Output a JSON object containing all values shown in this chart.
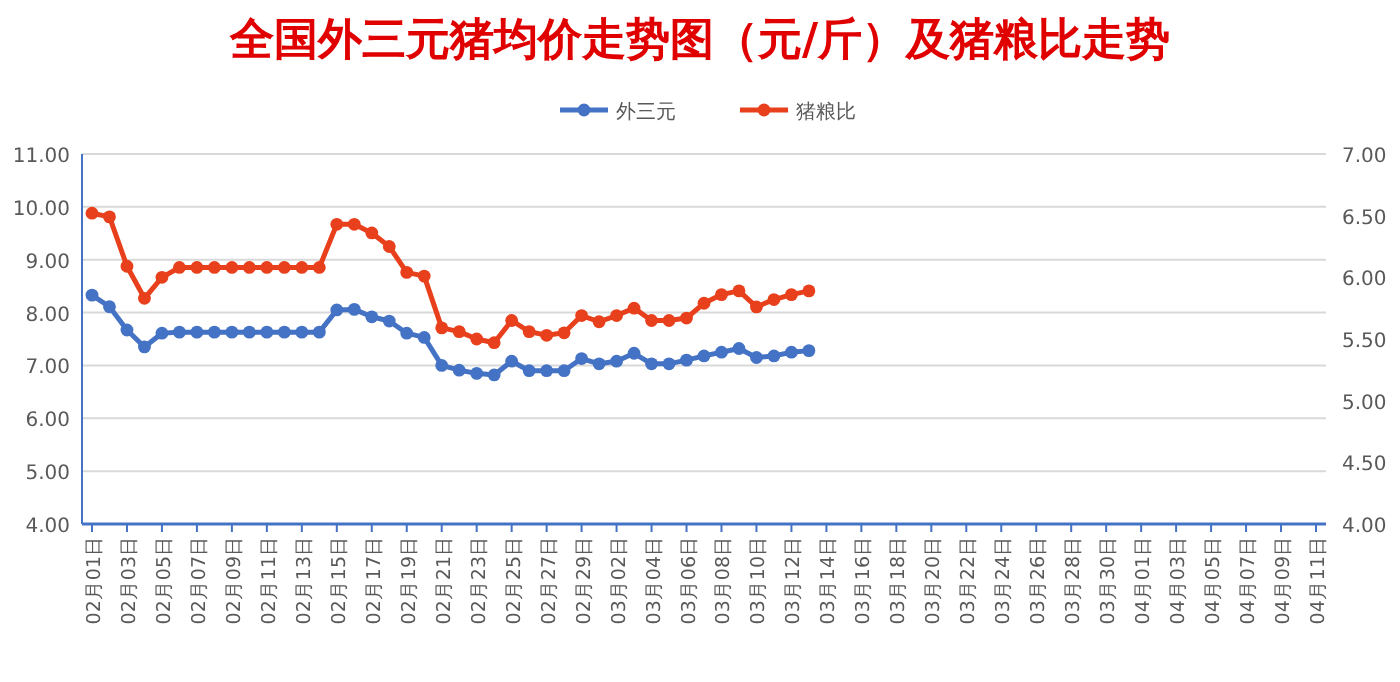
{
  "chart_data": {
    "type": "line",
    "title": "全国外三元猪均价走势图（元/斤）及猪粮比走势",
    "categories": [
      "02月01日",
      null,
      "02月03日",
      null,
      "02月05日",
      null,
      "02月07日",
      null,
      "02月09日",
      null,
      "02月11日",
      null,
      "02月13日",
      null,
      "02月15日",
      null,
      "02月17日",
      null,
      "02月19日",
      null,
      "02月21日",
      null,
      "02月23日",
      null,
      "02月25日",
      null,
      "02月27日",
      null,
      "02月29日",
      null,
      "03月02日",
      null,
      "03月04日",
      null,
      "03月06日",
      null,
      "03月08日",
      null,
      "03月10日",
      null,
      "03月12日",
      null,
      "03月14日",
      null,
      "03月16日",
      null,
      "03月18日",
      null,
      "03月20日",
      null,
      "03月22日",
      null,
      "03月24日",
      null,
      "03月26日",
      null,
      "03月28日",
      null,
      "03月30日",
      null,
      "04月01日",
      null,
      "04月03日",
      null,
      "04月05日",
      null,
      "04月07日",
      null,
      "04月09日",
      null,
      "04月11日"
    ],
    "series": [
      {
        "name": "外三元",
        "color": "#4472c4",
        "values": [
          8.33,
          8.11,
          7.67,
          7.35,
          7.61,
          7.63,
          7.63,
          7.63,
          7.63,
          7.63,
          7.63,
          7.63,
          7.63,
          7.63,
          8.05,
          8.06,
          7.92,
          7.84,
          7.61,
          7.53,
          7.0,
          6.91,
          6.85,
          6.82,
          7.08,
          6.9,
          6.9,
          6.9,
          7.13,
          7.03,
          7.08,
          7.23,
          7.03,
          7.03,
          7.1,
          7.18,
          7.25,
          7.32,
          7.15,
          7.18,
          7.25,
          7.28,
          null,
          null,
          null,
          null,
          null,
          null,
          null,
          null,
          null,
          null,
          null,
          null,
          null,
          null,
          null,
          null,
          null,
          null,
          null,
          null,
          null,
          null,
          null,
          null,
          null,
          null,
          null,
          null,
          null
        ]
      },
      {
        "name": "猪粮比",
        "color": "#e8401c",
        "axis": "y2",
        "values": [
          6.52,
          6.49,
          6.09,
          5.83,
          6.0,
          6.08,
          6.08,
          6.08,
          6.08,
          6.08,
          6.08,
          6.08,
          6.08,
          6.08,
          6.43,
          6.43,
          6.36,
          6.25,
          6.04,
          6.01,
          5.59,
          5.56,
          5.5,
          5.47,
          5.65,
          5.56,
          5.53,
          5.55,
          5.69,
          5.64,
          5.69,
          5.75,
          5.65,
          5.65,
          5.67,
          5.79,
          5.86,
          5.89,
          5.76,
          5.82,
          5.86,
          5.89,
          null,
          null,
          null,
          null,
          null,
          null,
          null,
          null,
          null,
          null,
          null,
          null,
          null,
          null,
          null,
          null,
          null,
          null,
          null,
          null,
          null,
          null,
          null,
          null,
          null,
          null,
          null,
          null,
          null
        ]
      }
    ],
    "ylim": [
      4,
      11
    ],
    "yticks": [
      {
        "value": 4,
        "label": "4.00"
      },
      {
        "value": 5,
        "label": "5.00"
      },
      {
        "value": 6,
        "label": "6.00"
      },
      {
        "value": 7,
        "label": "7.00"
      },
      {
        "value": 8,
        "label": "8.00"
      },
      {
        "value": 9,
        "label": "9.00"
      },
      {
        "value": 10,
        "label": "10.00"
      },
      {
        "value": 11,
        "label": "11.00"
      }
    ],
    "y2lim": [
      4,
      7
    ],
    "y2ticks": [
      {
        "value": 4,
        "label": "4.00"
      },
      {
        "value": 4.5,
        "label": "4.50"
      },
      {
        "value": 5,
        "label": "5.00"
      },
      {
        "value": 5.5,
        "label": "5.50"
      },
      {
        "value": 6,
        "label": "6.00"
      },
      {
        "value": 6.5,
        "label": "6.50"
      },
      {
        "value": 7,
        "label": "7.00"
      }
    ],
    "grid": "y",
    "legend": "top",
    "marker": "circle",
    "line_style": "solid"
  }
}
